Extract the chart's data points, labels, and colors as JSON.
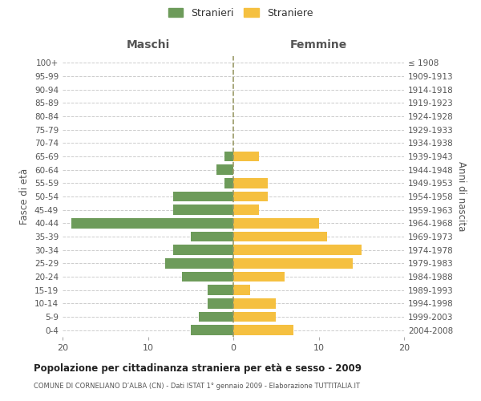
{
  "age_groups": [
    "100+",
    "95-99",
    "90-94",
    "85-89",
    "80-84",
    "75-79",
    "70-74",
    "65-69",
    "60-64",
    "55-59",
    "50-54",
    "45-49",
    "40-44",
    "35-39",
    "30-34",
    "25-29",
    "20-24",
    "15-19",
    "10-14",
    "5-9",
    "0-4"
  ],
  "birth_years": [
    "≤ 1908",
    "1909-1913",
    "1914-1918",
    "1919-1923",
    "1924-1928",
    "1929-1933",
    "1934-1938",
    "1939-1943",
    "1944-1948",
    "1949-1953",
    "1954-1958",
    "1959-1963",
    "1964-1968",
    "1969-1973",
    "1974-1978",
    "1979-1983",
    "1984-1988",
    "1989-1993",
    "1994-1998",
    "1999-2003",
    "2004-2008"
  ],
  "maschi": [
    0,
    0,
    0,
    0,
    0,
    0,
    0,
    1,
    2,
    1,
    7,
    7,
    19,
    5,
    7,
    8,
    6,
    3,
    3,
    4,
    5
  ],
  "femmine": [
    0,
    0,
    0,
    0,
    0,
    0,
    0,
    3,
    0,
    4,
    4,
    3,
    10,
    11,
    15,
    14,
    6,
    2,
    5,
    5,
    7
  ],
  "color_maschi": "#6d9b5a",
  "color_femmine": "#f5c040",
  "xlim": 20,
  "xlabel_left": "Maschi",
  "xlabel_right": "Femmine",
  "ylabel_left": "Fasce di età",
  "ylabel_right": "Anni di nascita",
  "title": "Popolazione per cittadinanza straniera per età e sesso - 2009",
  "subtitle": "COMUNE DI CORNELIANO D’ALBA (CN) - Dati ISTAT 1° gennaio 2009 - Elaborazione TUTTITALIA.IT",
  "legend_maschi": "Stranieri",
  "legend_femmine": "Straniere",
  "bg_color": "#ffffff",
  "grid_color": "#cccccc",
  "axis_label_color": "#555555"
}
